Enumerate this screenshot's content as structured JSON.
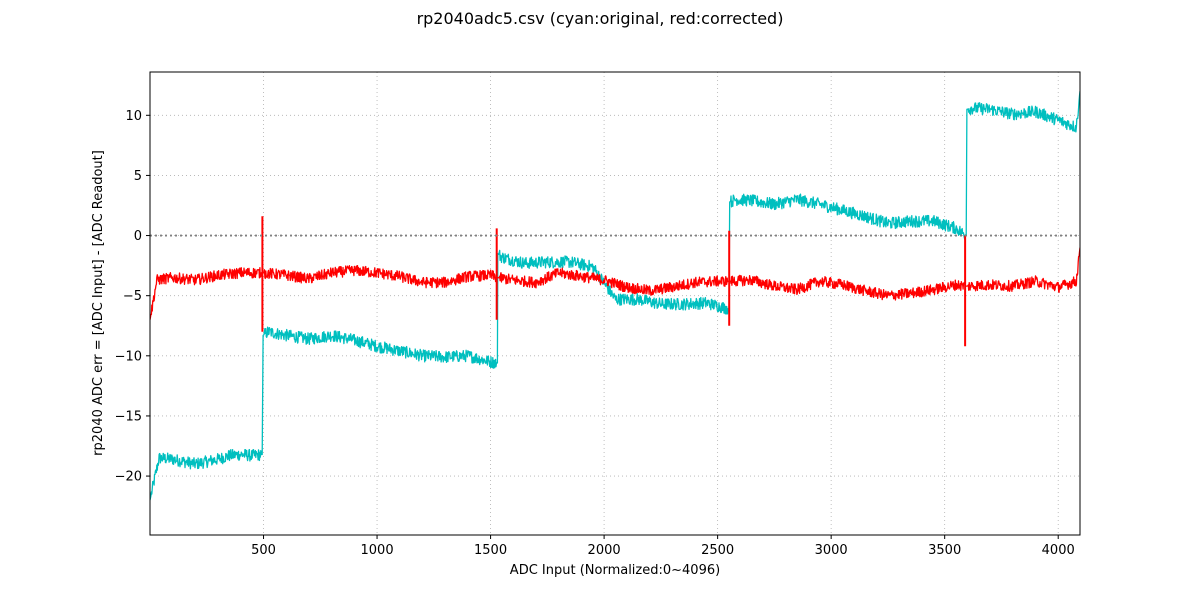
{
  "chart_data": {
    "type": "line",
    "title": "rp2040adc5.csv (cyan:original, red:corrected)",
    "xlabel": "ADC Input (Normalized:0~4096)",
    "ylabel": "rp2040 ADC err = [ADC Input] - [ADC Readout]",
    "xlim": [
      0,
      4096
    ],
    "ylim": [
      -24.9,
      13.6
    ],
    "x_ticks": [
      500,
      1000,
      1500,
      2000,
      2500,
      3000,
      3500,
      4000
    ],
    "x_tick_labels": [
      "500",
      "1000",
      "1500",
      "2000",
      "2500",
      "3000",
      "3500",
      "4000"
    ],
    "y_ticks": [
      -20,
      -15,
      -10,
      -5,
      0,
      5,
      10
    ],
    "y_tick_labels": [
      "−20",
      "−15",
      "−10",
      "−5",
      "0",
      "5",
      "10"
    ],
    "grid": true,
    "legend": "none",
    "reference_line": {
      "y": 0,
      "style": "dotted",
      "color": "#808080"
    },
    "series": [
      {
        "color": "#00bfbf",
        "segments": [
          {
            "x": [
              0,
              40,
              100,
              200,
              250,
              300,
              350,
              400,
              450,
              495
            ],
            "y": [
              -22,
              -18.5,
              -18.6,
              -19,
              -18.8,
              -18.6,
              -18.3,
              -18.2,
              -18.3,
              -18.2
            ]
          },
          {
            "x": [
              498,
              520,
              600,
              700,
              800,
              900,
              1000,
              1100,
              1200,
              1300,
              1400,
              1500,
              1530
            ],
            "y": [
              -8.3,
              -8,
              -8.3,
              -8.6,
              -8.3,
              -8.7,
              -9.2,
              -9.6,
              -10,
              -10.1,
              -10,
              -10.5,
              -10.6
            ]
          },
          {
            "x": [
              1532,
              1550,
              1650,
              1750,
              1850,
              1950,
              2050,
              2150,
              2250,
              2350,
              2450,
              2550
            ],
            "y": [
              -1.5,
              -1.8,
              -2.3,
              -2.2,
              -2.2,
              -2.6,
              -5.3,
              -5.3,
              -5.7,
              -5.7,
              -5.6,
              -6.1
            ]
          },
          {
            "x": [
              2553,
              2580,
              2650,
              2750,
              2850,
              2950,
              3050,
              3150,
              3250,
              3350,
              3450,
              3550,
              3595
            ],
            "y": [
              2.8,
              3.0,
              2.9,
              2.6,
              3.0,
              2.6,
              2.1,
              1.6,
              1.0,
              1.2,
              1.2,
              0.6,
              0.0
            ]
          },
          {
            "x": [
              3598,
              3620,
              3700,
              3800,
              3900,
              4000,
              4080,
              4096
            ],
            "y": [
              10.5,
              10.6,
              10.5,
              10.1,
              10.3,
              9.6,
              9.0,
              12.0
            ]
          }
        ],
        "noise": 0.5
      },
      {
        "color": "#ff0000",
        "segments": [
          {
            "x": [
              0,
              30,
              100,
              200,
              300,
              400,
              495
            ],
            "y": [
              -7,
              -3.7,
              -3.5,
              -3.7,
              -3.3,
              -3.1,
              -3.1
            ]
          },
          {
            "x": [
              498,
              600,
              700,
              800,
              900,
              1000,
              1100,
              1200,
              1300,
              1400,
              1500,
              1530
            ],
            "y": [
              -3.1,
              -3.3,
              -3.6,
              -3.1,
              -2.9,
              -3.1,
              -3.4,
              -3.9,
              -3.9,
              -3.4,
              -3.3,
              -3.5
            ]
          },
          {
            "x": [
              1532,
              1600,
              1700,
              1800,
              1900,
              2000,
              2100,
              2200,
              2300,
              2400,
              2500,
              2550
            ],
            "y": [
              -3.5,
              -3.7,
              -3.9,
              -3.1,
              -3.4,
              -3.7,
              -4.3,
              -4.6,
              -4.3,
              -3.9,
              -3.8,
              -3.8
            ]
          },
          {
            "x": [
              2553,
              2650,
              2750,
              2850,
              2950,
              3050,
              3150,
              3250,
              3350,
              3450,
              3550,
              3595
            ],
            "y": [
              -3.8,
              -3.7,
              -4.2,
              -4.5,
              -3.8,
              -4.1,
              -4.6,
              -5.0,
              -4.8,
              -4.5,
              -4.1,
              -4.2
            ]
          },
          {
            "x": [
              3598,
              3700,
              3800,
              3900,
              4000,
              4080,
              4096
            ],
            "y": [
              -4.2,
              -4.1,
              -4.2,
              -3.8,
              -4.3,
              -3.8,
              -1.0
            ]
          }
        ],
        "spikes": [
          {
            "x": 495,
            "y": [
              -8.0,
              1.6
            ]
          },
          {
            "x": 1527,
            "y": [
              -7.0,
              0.6
            ]
          },
          {
            "x": 2551,
            "y": [
              -7.5,
              0.4
            ]
          },
          {
            "x": 3590,
            "y": [
              -9.2,
              0.0
            ]
          }
        ],
        "noise": 0.45
      }
    ]
  }
}
